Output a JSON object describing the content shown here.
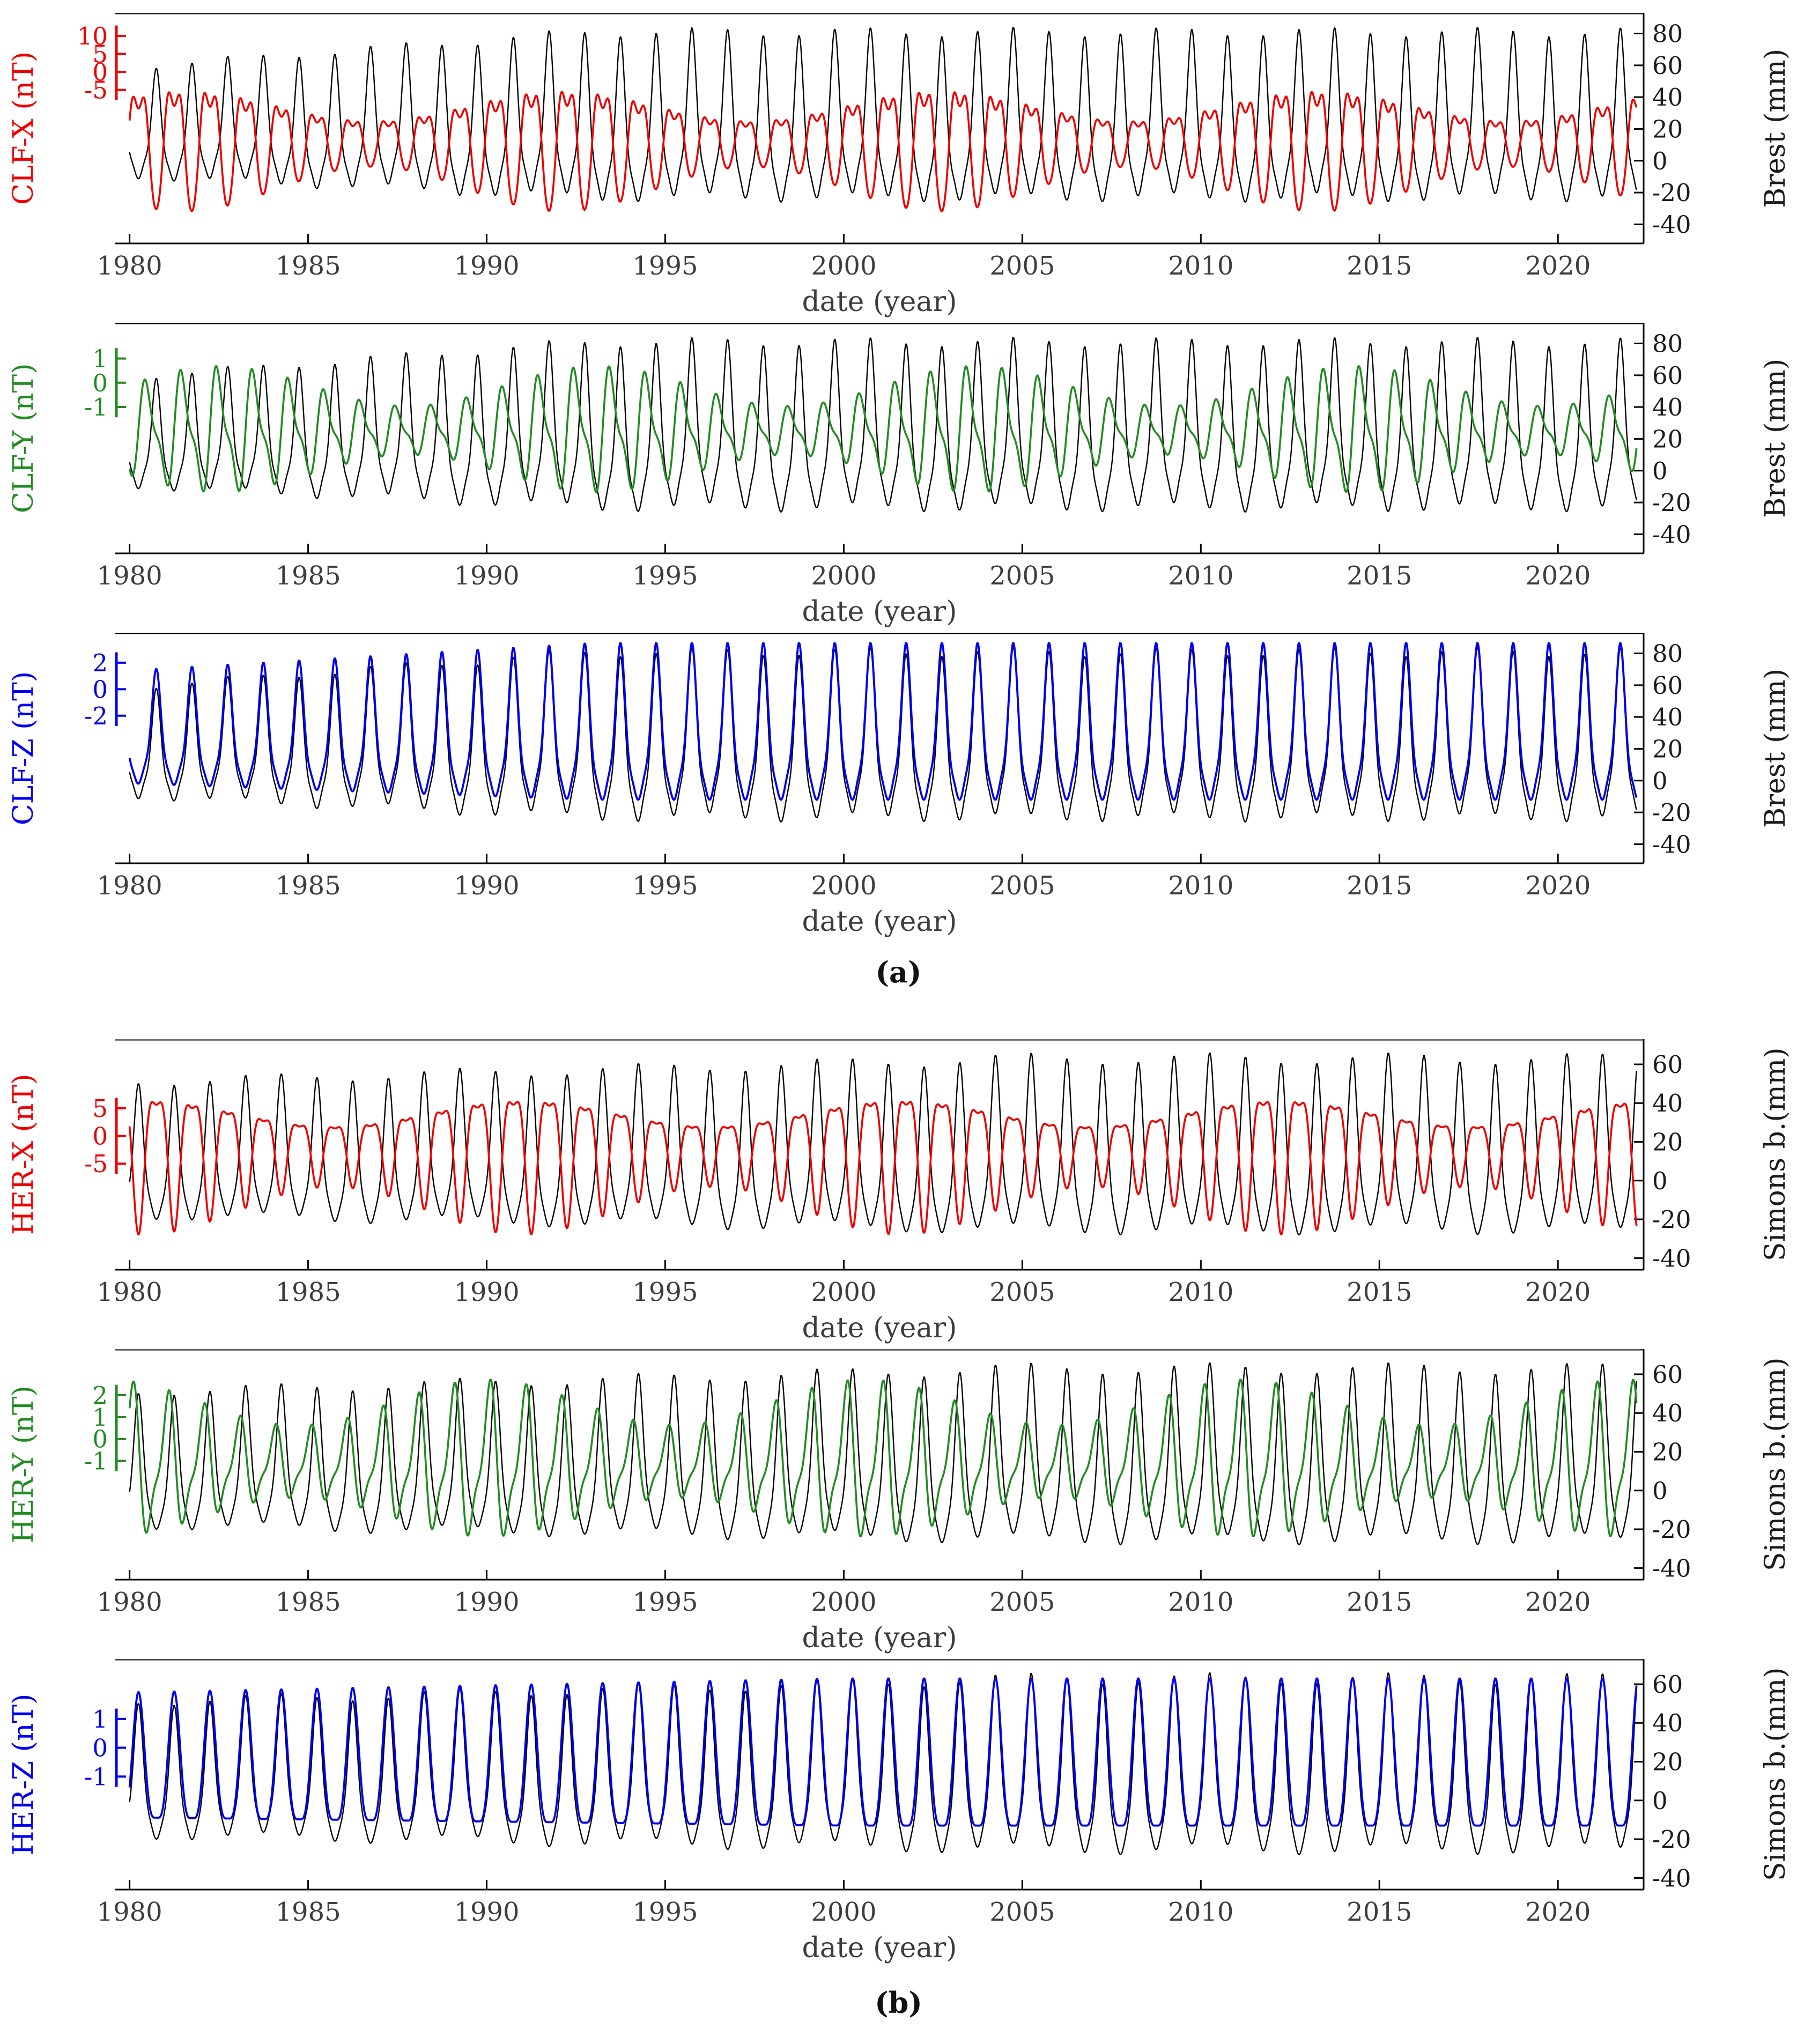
{
  "figure": {
    "captions": {
      "a": "(a)",
      "b": "(b)"
    }
  },
  "colors": {
    "red": "#ee0000",
    "green": "#228b22",
    "blue": "#0000ee",
    "black": "#000000",
    "axis_text": "#3d3d3d",
    "right_text": "#1b1b1b"
  },
  "chart_data": [
    {
      "id": "clf-x-vs-brest",
      "type": "line",
      "x_axis": {
        "label": "date (year)",
        "range": [
          1979.6,
          2022.4
        ],
        "ticks": [
          1980,
          1985,
          1990,
          1995,
          2000,
          2005,
          2010,
          2015,
          2020
        ]
      },
      "left_axis": {
        "label": "CLF-X (nT)",
        "color_key": "red",
        "ticks": [
          10,
          5,
          0,
          -5
        ],
        "range": [
          -7.5,
          11.8
        ],
        "bar": {
          "start_frac": 0.1,
          "step_frac": 0.078
        }
      },
      "right_axis": {
        "label": "Brest (mm)",
        "ticks": [
          80,
          60,
          40,
          20,
          0,
          -20,
          -40
        ],
        "range": [
          -52,
          93
        ]
      },
      "series": [
        {
          "name": "Brest sea level",
          "axis": "right",
          "color_key": "black",
          "width": 2.4,
          "gen": {
            "base": 16,
            "harmonics": [
              [
                1,
                46,
                -3.1
              ],
              [
                2,
                13,
                4.71
              ],
              [
                3,
                6,
                0
              ],
              [
                0.23,
                3,
                1.0
              ]
            ],
            "ramp": [
              1980,
              1993,
              0.66,
              1.0
            ]
          }
        },
        {
          "name": "CLF-X",
          "axis": "left",
          "color_key": "red",
          "width": 3.6,
          "gen": {
            "base": 1.2,
            "harmonics": [
              [
                1,
                3.4,
                0.04
              ],
              [
                2,
                1.1,
                1.6
              ],
              [
                3,
                0.35,
                0
              ]
            ],
            "mod": [
              10.6,
              1981.5,
              1.0,
              0.45
            ]
          }
        }
      ]
    },
    {
      "id": "clf-y-vs-brest",
      "type": "line",
      "x_axis": {
        "label": "date (year)",
        "range": [
          1979.6,
          2022.4
        ],
        "ticks": [
          1980,
          1985,
          1990,
          1995,
          2000,
          2005,
          2010,
          2015,
          2020
        ]
      },
      "left_axis": {
        "label": "CLF-Y (nT)",
        "color_key": "green",
        "ticks": [
          1,
          0,
          -1
        ],
        "range": [
          -2.6,
          2.4
        ],
        "bar": {
          "start_frac": 0.155,
          "step_frac": 0.105
        }
      },
      "right_axis": {
        "label": "Brest (mm)",
        "ticks": [
          80,
          60,
          40,
          20,
          0,
          -20,
          -40
        ],
        "range": [
          -52,
          93
        ]
      },
      "series": [
        {
          "name": "Brest sea level",
          "axis": "right",
          "color_key": "black",
          "width": 2.4,
          "gen": {
            "base": 16,
            "harmonics": [
              [
                1,
                46,
                -3.1
              ],
              [
                2,
                13,
                4.71
              ],
              [
                3,
                6,
                0
              ],
              [
                0.23,
                3,
                1.0
              ]
            ],
            "ramp": [
              1980,
              1993,
              0.66,
              1.0
            ]
          }
        },
        {
          "name": "CLF-Y",
          "axis": "left",
          "color_key": "green",
          "width": 3.6,
          "gen": {
            "base": 0.05,
            "harmonics": [
              [
                1,
                0.85,
                -1.5
              ],
              [
                2,
                0.3,
                3.1
              ]
            ],
            "mod": [
              10.6,
              1982.5,
              0.95,
              0.42
            ]
          }
        }
      ]
    },
    {
      "id": "clf-z-vs-brest",
      "type": "line",
      "x_axis": {
        "label": "date (year)",
        "range": [
          1979.6,
          2022.4
        ],
        "ticks": [
          1980,
          1985,
          1990,
          1995,
          2000,
          2005,
          2010,
          2015,
          2020
        ]
      },
      "left_axis": {
        "label": "CLF-Z (nT)",
        "color_key": "blue",
        "ticks": [
          2,
          0,
          -2
        ],
        "range": [
          -3.4,
          3.5
        ],
        "bar": {
          "start_frac": 0.13,
          "step_frac": 0.115
        }
      },
      "right_axis": {
        "label": "Brest (mm)",
        "ticks": [
          80,
          60,
          40,
          20,
          0,
          -20,
          -40
        ],
        "range": [
          -52,
          93
        ]
      },
      "series": [
        {
          "name": "Brest sea level",
          "axis": "right",
          "color_key": "black",
          "width": 2.4,
          "gen": {
            "base": 16,
            "harmonics": [
              [
                1,
                46,
                -3.1
              ],
              [
                2,
                13,
                4.71
              ],
              [
                3,
                6,
                0
              ],
              [
                0.23,
                3,
                1.0
              ]
            ],
            "ramp": [
              1980,
              1993,
              0.66,
              1.0
            ]
          }
        },
        {
          "name": "CLF-Z",
          "axis": "left",
          "color_key": "blue",
          "width": 3.8,
          "gen": {
            "base": 0.25,
            "harmonics": [
              [
                1,
                2.1,
                -3.1
              ],
              [
                2,
                0.6,
                4.71
              ],
              [
                3,
                0.25,
                0
              ]
            ],
            "ramp": [
              1980,
              1993,
              0.72,
              1.0
            ]
          }
        }
      ]
    },
    {
      "id": "her-x-vs-simons-bay",
      "type": "line",
      "x_axis": {
        "label": "date (year)",
        "range": [
          1979.6,
          2022.4
        ],
        "ticks": [
          1980,
          1985,
          1990,
          1995,
          2000,
          2005,
          2010,
          2015,
          2020
        ]
      },
      "left_axis": {
        "label": "HER-X (nT)",
        "color_key": "red",
        "ticks": [
          5,
          0,
          -5
        ],
        "range": [
          -8.8,
          8.8
        ],
        "bar": {
          "start_frac": 0.3,
          "step_frac": 0.12
        }
      },
      "right_axis": {
        "label": "Simons b.(mm)",
        "ticks": [
          60,
          40,
          20,
          0,
          -20,
          -40
        ],
        "range": [
          -46,
          73
        ]
      },
      "series": [
        {
          "name": "Simons Bay sea level",
          "axis": "right",
          "color_key": "black",
          "width": 2.4,
          "gen": {
            "base": 8,
            "harmonics": [
              [
                1,
                40,
                0
              ],
              [
                2,
                11,
                -1.57
              ],
              [
                3,
                4,
                -3.14
              ],
              [
                0.19,
                3,
                2.0
              ]
            ],
            "ramp": [
              1980,
              2005,
              0.78,
              1.0
            ]
          }
        },
        {
          "name": "HER-X",
          "axis": "left",
          "color_key": "red",
          "width": 3.6,
          "gen": {
            "base": 0.5,
            "harmonics": [
              [
                1,
                3.6,
                3.14
              ],
              [
                2,
                1.2,
                1.57
              ]
            ],
            "mod": [
              10.6,
              1991,
              1.0,
              0.38
            ]
          }
        }
      ]
    },
    {
      "id": "her-y-vs-simons-bay",
      "type": "line",
      "x_axis": {
        "label": "date (year)",
        "range": [
          1979.6,
          2022.4
        ],
        "ticks": [
          1980,
          1985,
          1990,
          1995,
          2000,
          2005,
          2010,
          2015,
          2020
        ]
      },
      "left_axis": {
        "label": "HER-Y (nT)",
        "color_key": "green",
        "ticks": [
          2,
          1,
          0,
          -1
        ],
        "range": [
          -2.0,
          2.6
        ],
        "bar": {
          "start_frac": 0.2,
          "step_frac": 0.095
        }
      },
      "right_axis": {
        "label": "Simons b.(mm)",
        "ticks": [
          60,
          40,
          20,
          0,
          -20,
          -40
        ],
        "range": [
          -46,
          73
        ]
      },
      "series": [
        {
          "name": "Simons Bay sea level",
          "axis": "right",
          "color_key": "black",
          "width": 2.4,
          "gen": {
            "base": 8,
            "harmonics": [
              [
                1,
                40,
                0
              ],
              [
                2,
                11,
                -1.57
              ],
              [
                3,
                4,
                -3.14
              ],
              [
                0.19,
                3,
                2.0
              ]
            ],
            "ramp": [
              1980,
              2005,
              0.78,
              1.0
            ]
          }
        },
        {
          "name": "HER-Y",
          "axis": "left",
          "color_key": "green",
          "width": 3.6,
          "gen": {
            "base": 0.3,
            "harmonics": [
              [
                1,
                1.05,
                1.2
              ],
              [
                2,
                0.35,
                -0.3
              ]
            ],
            "mod": [
              10.6,
              1990,
              0.95,
              0.35
            ]
          }
        }
      ]
    },
    {
      "id": "her-z-vs-simons-bay",
      "type": "line",
      "x_axis": {
        "label": "date (year)",
        "range": [
          1979.6,
          2022.4
        ],
        "ticks": [
          1980,
          1985,
          1990,
          1995,
          2000,
          2005,
          2010,
          2015,
          2020
        ]
      },
      "left_axis": {
        "label": "HER-Z (nT)",
        "color_key": "blue",
        "ticks": [
          1,
          0,
          -1
        ],
        "range": [
          -1.65,
          1.95
        ],
        "bar": {
          "start_frac": 0.26,
          "step_frac": 0.125
        }
      },
      "right_axis": {
        "label": "Simons b.(mm)",
        "ticks": [
          60,
          40,
          20,
          0,
          -20,
          -40
        ],
        "range": [
          -46,
          73
        ]
      },
      "series": [
        {
          "name": "Simons Bay sea level",
          "axis": "right",
          "color_key": "black",
          "width": 2.4,
          "gen": {
            "base": 8,
            "harmonics": [
              [
                1,
                40,
                0
              ],
              [
                2,
                11,
                -1.57
              ],
              [
                3,
                4,
                -3.14
              ],
              [
                0.19,
                3,
                2.0
              ]
            ],
            "ramp": [
              1980,
              2005,
              0.78,
              1.0
            ]
          }
        },
        {
          "name": "HER-Z",
          "axis": "left",
          "color_key": "blue",
          "width": 3.8,
          "gen": {
            "base": 0.2,
            "harmonics": [
              [
                1,
                1.15,
                0
              ],
              [
                2,
                0.3,
                -1.57
              ]
            ],
            "ramp": [
              1980,
              2000,
              0.85,
              1.0
            ]
          }
        }
      ]
    }
  ]
}
